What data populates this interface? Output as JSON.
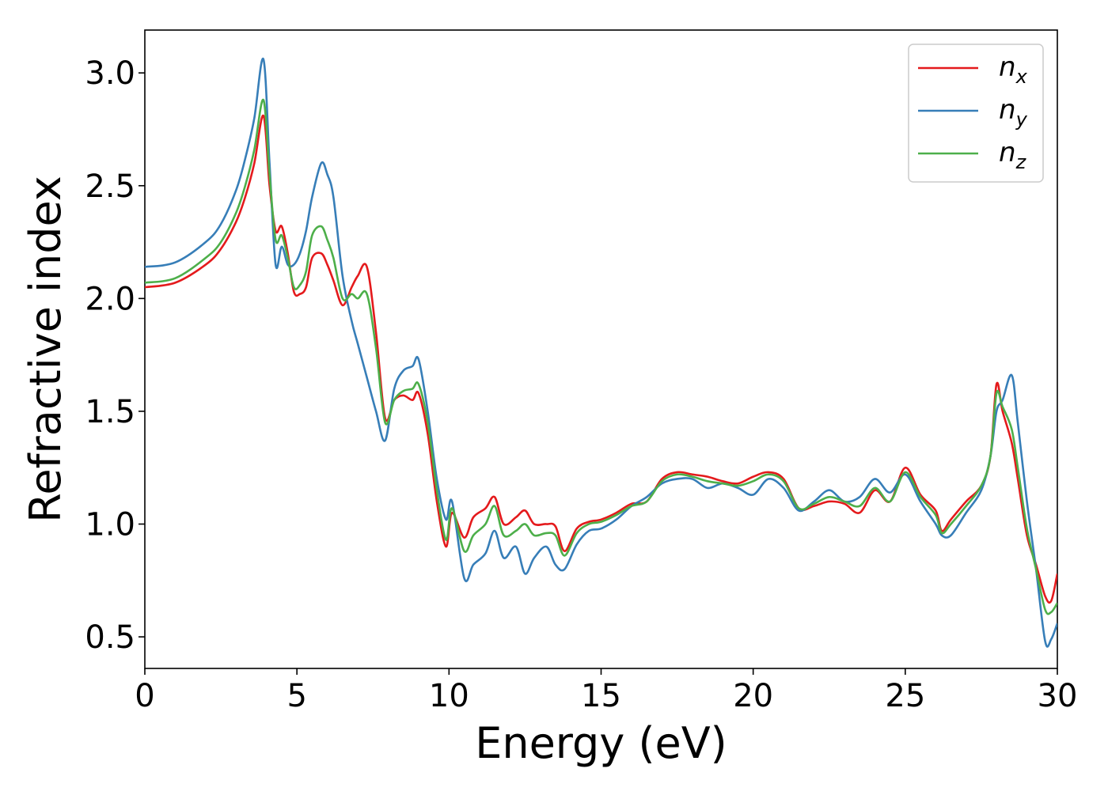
{
  "chart_data": {
    "type": "line",
    "title": "",
    "xlabel": "Energy (eV)",
    "ylabel": "Refractive index",
    "xlim": [
      0,
      30
    ],
    "ylim": [
      0.36,
      3.19
    ],
    "xticks": [
      0,
      5,
      10,
      15,
      20,
      25,
      30
    ],
    "xtick_labels": [
      "0",
      "5",
      "10",
      "15",
      "20",
      "25",
      "30"
    ],
    "yticks": [
      0.5,
      1.0,
      1.5,
      2.0,
      2.5,
      3.0
    ],
    "ytick_labels": [
      "0.5",
      "1.0",
      "1.5",
      "2.0",
      "2.5",
      "3.0"
    ],
    "grid": false,
    "legend_position": "top-right",
    "series": [
      {
        "name": "n_x",
        "label_base": "n",
        "label_sub": "x",
        "color": "#e41a1c",
        "x": [
          0,
          1,
          2,
          2.5,
          3,
          3.3,
          3.6,
          3.9,
          4.1,
          4.3,
          4.5,
          4.7,
          4.9,
          5.1,
          5.3,
          5.5,
          5.8,
          6.0,
          6.2,
          6.5,
          6.8,
          7.0,
          7.3,
          7.6,
          7.9,
          8.2,
          8.5,
          8.8,
          9.0,
          9.3,
          9.6,
          9.9,
          10.1,
          10.5,
          10.8,
          11.2,
          11.5,
          11.8,
          12.2,
          12.5,
          12.8,
          13.2,
          13.5,
          13.8,
          14.2,
          14.6,
          15.0,
          15.5,
          16.0,
          16.5,
          17.0,
          17.5,
          18.0,
          18.5,
          19.0,
          19.5,
          20.0,
          20.5,
          21.0,
          21.5,
          22.0,
          22.5,
          23.0,
          23.5,
          24.0,
          24.5,
          25.0,
          25.5,
          26.0,
          26.2,
          26.5,
          27.0,
          27.5,
          27.8,
          28.0,
          28.2,
          28.5,
          28.7,
          29.0,
          29.3,
          29.6,
          29.8,
          30.0
        ],
        "y": [
          2.05,
          2.07,
          2.15,
          2.22,
          2.34,
          2.45,
          2.6,
          2.81,
          2.5,
          2.3,
          2.32,
          2.2,
          2.03,
          2.02,
          2.05,
          2.18,
          2.2,
          2.15,
          2.08,
          1.97,
          2.05,
          2.1,
          2.14,
          1.85,
          1.47,
          1.55,
          1.57,
          1.55,
          1.58,
          1.4,
          1.1,
          0.9,
          1.05,
          0.94,
          1.03,
          1.07,
          1.12,
          1.0,
          1.03,
          1.06,
          1.0,
          1.0,
          0.99,
          0.88,
          0.98,
          1.01,
          1.02,
          1.05,
          1.09,
          1.1,
          1.2,
          1.23,
          1.22,
          1.21,
          1.19,
          1.18,
          1.21,
          1.23,
          1.2,
          1.07,
          1.08,
          1.1,
          1.09,
          1.05,
          1.15,
          1.1,
          1.25,
          1.13,
          1.06,
          0.97,
          1.02,
          1.1,
          1.17,
          1.3,
          1.62,
          1.5,
          1.36,
          1.2,
          0.95,
          0.82,
          0.68,
          0.66,
          0.78
        ]
      },
      {
        "name": "n_y",
        "label_base": "n",
        "label_sub": "y",
        "color": "#377eb8",
        "x": [
          0,
          1,
          2,
          2.5,
          3,
          3.3,
          3.6,
          3.9,
          4.1,
          4.3,
          4.5,
          4.7,
          4.9,
          5.1,
          5.3,
          5.5,
          5.8,
          6.0,
          6.2,
          6.5,
          6.8,
          7.0,
          7.3,
          7.6,
          7.9,
          8.2,
          8.5,
          8.8,
          9.0,
          9.3,
          9.6,
          9.9,
          10.1,
          10.5,
          10.8,
          11.2,
          11.5,
          11.8,
          12.2,
          12.5,
          12.8,
          13.2,
          13.5,
          13.8,
          14.2,
          14.6,
          15.0,
          15.5,
          16.0,
          16.5,
          17.0,
          17.5,
          18.0,
          18.5,
          19.0,
          19.5,
          20.0,
          20.5,
          21.0,
          21.5,
          22.0,
          22.5,
          23.0,
          23.5,
          24.0,
          24.5,
          25.0,
          25.5,
          26.0,
          26.2,
          26.5,
          27.0,
          27.5,
          27.8,
          28.0,
          28.2,
          28.5,
          28.7,
          29.0,
          29.3,
          29.6,
          29.8,
          30.0
        ],
        "y": [
          2.14,
          2.16,
          2.25,
          2.33,
          2.48,
          2.62,
          2.8,
          3.06,
          2.6,
          2.15,
          2.23,
          2.15,
          2.15,
          2.2,
          2.3,
          2.45,
          2.6,
          2.55,
          2.45,
          2.1,
          1.9,
          1.8,
          1.65,
          1.5,
          1.37,
          1.6,
          1.68,
          1.7,
          1.73,
          1.5,
          1.2,
          1.02,
          1.1,
          0.76,
          0.82,
          0.87,
          0.97,
          0.85,
          0.9,
          0.78,
          0.85,
          0.9,
          0.82,
          0.8,
          0.91,
          0.97,
          0.98,
          1.02,
          1.08,
          1.12,
          1.18,
          1.2,
          1.2,
          1.16,
          1.18,
          1.16,
          1.13,
          1.2,
          1.16,
          1.06,
          1.1,
          1.15,
          1.1,
          1.12,
          1.2,
          1.14,
          1.22,
          1.1,
          1.0,
          0.95,
          0.95,
          1.05,
          1.15,
          1.3,
          1.5,
          1.55,
          1.66,
          1.45,
          1.1,
          0.8,
          0.48,
          0.49,
          0.56
        ]
      },
      {
        "name": "n_z",
        "label_base": "n",
        "label_sub": "z",
        "color": "#4daf4a",
        "x": [
          0,
          1,
          2,
          2.5,
          3,
          3.3,
          3.6,
          3.9,
          4.1,
          4.3,
          4.5,
          4.7,
          4.9,
          5.1,
          5.3,
          5.5,
          5.8,
          6.0,
          6.2,
          6.5,
          6.8,
          7.0,
          7.3,
          7.6,
          7.9,
          8.2,
          8.5,
          8.8,
          9.0,
          9.3,
          9.6,
          9.9,
          10.1,
          10.5,
          10.8,
          11.2,
          11.5,
          11.8,
          12.2,
          12.5,
          12.8,
          13.2,
          13.5,
          13.8,
          14.2,
          14.6,
          15.0,
          15.5,
          16.0,
          16.5,
          17.0,
          17.5,
          18.0,
          18.5,
          19.0,
          19.5,
          20.0,
          20.5,
          21.0,
          21.5,
          22.0,
          22.5,
          23.0,
          23.5,
          24.0,
          24.5,
          25.0,
          25.5,
          26.0,
          26.2,
          26.5,
          27.0,
          27.5,
          27.8,
          28.0,
          28.2,
          28.5,
          28.7,
          29.0,
          29.3,
          29.6,
          29.8,
          30.0
        ],
        "y": [
          2.07,
          2.09,
          2.18,
          2.25,
          2.38,
          2.5,
          2.66,
          2.88,
          2.55,
          2.26,
          2.28,
          2.18,
          2.05,
          2.06,
          2.12,
          2.28,
          2.32,
          2.26,
          2.18,
          2.0,
          2.02,
          2.0,
          2.02,
          1.78,
          1.45,
          1.55,
          1.59,
          1.6,
          1.62,
          1.45,
          1.15,
          0.93,
          1.07,
          0.88,
          0.95,
          1.0,
          1.08,
          0.95,
          0.97,
          1.0,
          0.95,
          0.96,
          0.95,
          0.86,
          0.96,
          1.0,
          1.01,
          1.04,
          1.08,
          1.1,
          1.19,
          1.22,
          1.21,
          1.19,
          1.18,
          1.17,
          1.19,
          1.22,
          1.19,
          1.07,
          1.09,
          1.12,
          1.1,
          1.08,
          1.16,
          1.1,
          1.23,
          1.12,
          1.04,
          0.96,
          1.0,
          1.08,
          1.17,
          1.3,
          1.58,
          1.52,
          1.42,
          1.25,
          0.98,
          0.8,
          0.62,
          0.61,
          0.65
        ]
      }
    ]
  }
}
